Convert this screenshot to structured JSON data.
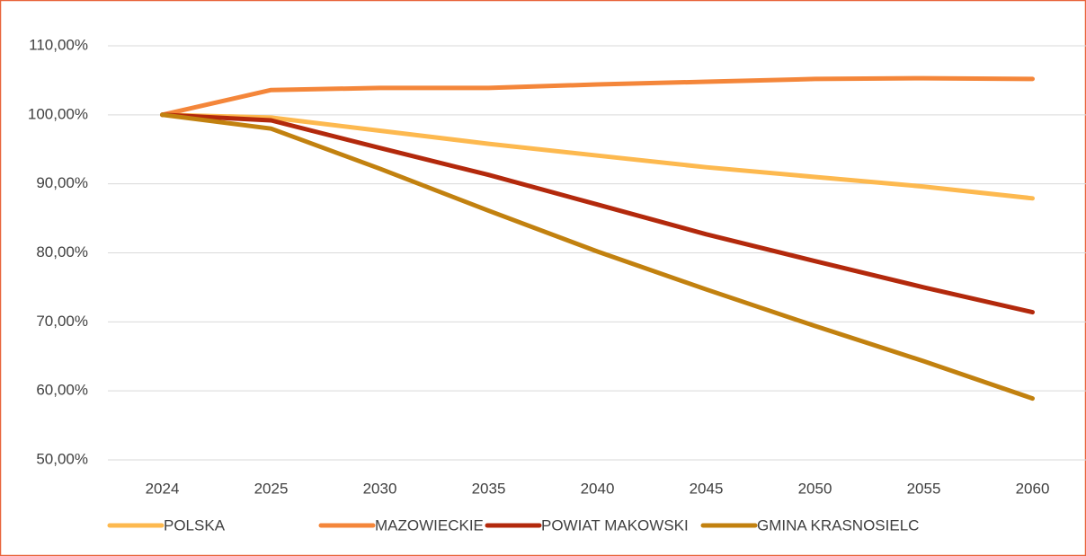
{
  "chart_data": {
    "type": "line",
    "categories": [
      "2024",
      "2025",
      "2030",
      "2035",
      "2040",
      "2045",
      "2050",
      "2055",
      "2060"
    ],
    "series": [
      {
        "name": "POLSKA",
        "color": "#fdb94f",
        "values": [
          100,
          99.6,
          97.7,
          95.8,
          94.1,
          92.4,
          91.0,
          89.6,
          87.9
        ]
      },
      {
        "name": "MAZOWIECKIE",
        "color": "#f4863a",
        "values": [
          100,
          103.6,
          103.9,
          103.9,
          104.4,
          104.8,
          105.2,
          105.3,
          105.2
        ]
      },
      {
        "name": "POWIAT MAKOWSKI",
        "color": "#b3290c",
        "values": [
          100,
          99.2,
          95.2,
          91.3,
          87.0,
          82.7,
          78.8,
          75.0,
          71.4
        ]
      },
      {
        "name": "GMINA KRASNOSIELC",
        "color": "#c2810f",
        "values": [
          100,
          98.0,
          92.2,
          86.1,
          80.2,
          74.7,
          69.4,
          64.3,
          58.9
        ]
      }
    ],
    "ylim": [
      50,
      110
    ],
    "yticks": [
      {
        "value": 50,
        "label": "50,00%"
      },
      {
        "value": 60,
        "label": "60,00%"
      },
      {
        "value": 70,
        "label": "70,00%"
      },
      {
        "value": 80,
        "label": "80,00%"
      },
      {
        "value": 90,
        "label": "90,00%"
      },
      {
        "value": 100,
        "label": "100,00%"
      },
      {
        "value": 110,
        "label": "110,00%"
      }
    ],
    "grid": true,
    "legend": "bottom"
  }
}
